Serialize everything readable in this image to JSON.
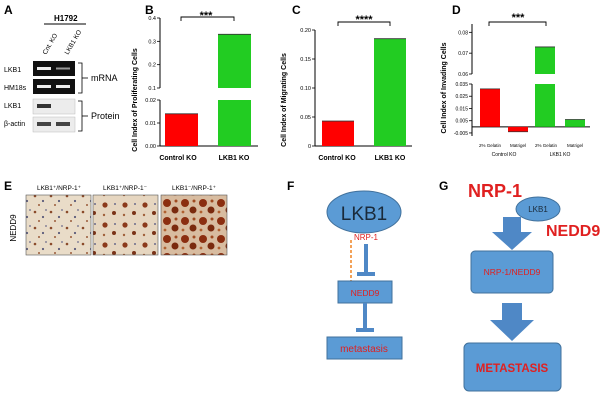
{
  "panels": {
    "A": {
      "letter": "A",
      "cell_line": "H1792",
      "lane_labels": [
        "Cnt. KO",
        "LKB1 KO"
      ],
      "row_labels": [
        "LKB1",
        "HM18s",
        "LKB1",
        "β-actin"
      ],
      "bracket_labels": [
        "mRNA",
        "Protein"
      ]
    },
    "B": {
      "letter": "B",
      "chart_data": {
        "type": "bar",
        "ylabel": "Cell Index of Proliferating Cells",
        "categories": [
          "Control KO",
          "LKB1 KO"
        ],
        "values": [
          0.014,
          0.33
        ],
        "colors": [
          "#ff0000",
          "#22cc22"
        ],
        "axis_break": [
          0.02,
          0.08
        ],
        "yticks": [
          "0.00",
          "0.01",
          "0.02",
          "0.1",
          "0.2",
          "0.3",
          "0.4"
        ],
        "significance": "***"
      }
    },
    "C": {
      "letter": "C",
      "chart_data": {
        "type": "bar",
        "ylabel": "Cell Index of Migrating Cells",
        "categories": [
          "Control KO",
          "LKB1 KO"
        ],
        "values": [
          0.043,
          0.185
        ],
        "colors": [
          "#ff0000",
          "#22cc22"
        ],
        "ylim": [
          0,
          0.2
        ],
        "yticks": [
          "0",
          "0.05",
          "0.10",
          "0.15",
          "0.20"
        ],
        "significance": "****"
      }
    },
    "D": {
      "letter": "D",
      "chart_data": {
        "type": "bar",
        "ylabel": "Cell Index of Invading Cells",
        "categories": [
          "2% Gelatin",
          "Matrigel",
          "2% Gelatin",
          "Matrigel"
        ],
        "group_labels": [
          "Control KO",
          "LKB1 KO"
        ],
        "values": [
          0.031,
          -0.004,
          0.073,
          0.006
        ],
        "colors": [
          "#ff0000",
          "#ff0000",
          "#22cc22",
          "#22cc22"
        ],
        "axis_break": [
          0.035,
          0.06
        ],
        "yticks": [
          "-0.005",
          "0.005",
          "0.015",
          "0.025",
          "0.035",
          "0.06",
          "0.07",
          "0.08"
        ],
        "significance": "***"
      }
    },
    "E": {
      "letter": "E",
      "side_label": "NEDD9",
      "captions": [
        "LKB1⁺/NRP-1⁺",
        "LKB1⁺/NRP-1⁻",
        "LKB1⁻/NRP-1⁺"
      ]
    },
    "F": {
      "letter": "F",
      "nodes": [
        "LKB1",
        "NRP-1",
        "NEDD9",
        "metastasis"
      ]
    },
    "G": {
      "letter": "G",
      "labels": [
        "NRP-1",
        "LKB1",
        "NEDD9",
        "NRP-1/NEDD9",
        "METASTASIS"
      ]
    }
  },
  "colors": {
    "red": "#ff0000",
    "green": "#22cc22",
    "blue_node": "#5b9bd5",
    "blue_arrow": "#4f88c6",
    "orange": "#f08c30"
  }
}
